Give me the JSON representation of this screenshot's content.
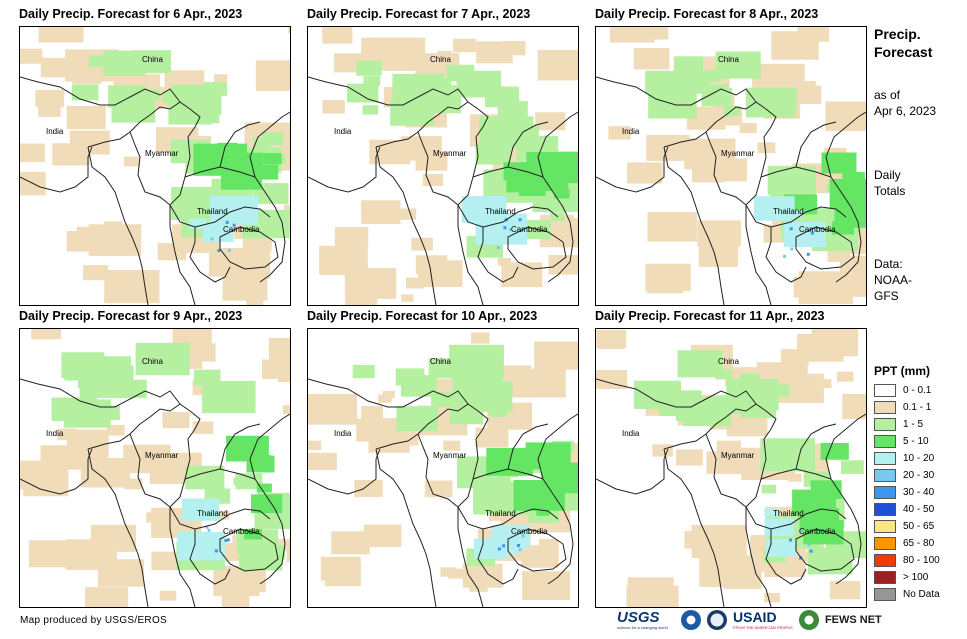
{
  "panels": [
    {
      "title": "Daily Precip. Forecast for 6 Apr., 2023",
      "seed": 6
    },
    {
      "title": "Daily Precip. Forecast for 7 Apr., 2023",
      "seed": 7
    },
    {
      "title": "Daily Precip. Forecast for 8 Apr., 2023",
      "seed": 8
    },
    {
      "title": "Daily Precip. Forecast for 9 Apr., 2023",
      "seed": 9
    },
    {
      "title": "Daily Precip. Forecast for 10 Apr., 2023",
      "seed": 10
    },
    {
      "title": "Daily Precip. Forecast for 11 Apr., 2023",
      "seed": 11
    }
  ],
  "places": {
    "china": "China",
    "india": "India",
    "myanmar": "Myanmar",
    "thailand": "Thailand",
    "cambodia": "Cambodia"
  },
  "side": {
    "title": "Precip. Forecast",
    "asof_line1": "as of",
    "asof_line2": "Apr 6, 2023",
    "totals_line1": "Daily",
    "totals_line2": "Totals",
    "data_line1": "Data:",
    "data_line2": "NOAA-",
    "data_line3": "GFS"
  },
  "legend": {
    "title": "PPT (mm)",
    "items": [
      {
        "label": "0 - 0.1",
        "color": "#ffffff"
      },
      {
        "label": "0.1 - 1",
        "color": "#f0dcb8"
      },
      {
        "label": "1 - 5",
        "color": "#b4f0a0"
      },
      {
        "label": "5 - 10",
        "color": "#64e664"
      },
      {
        "label": "10 - 20",
        "color": "#b4f0f0"
      },
      {
        "label": "20 - 30",
        "color": "#78c8f0"
      },
      {
        "label": "30 - 40",
        "color": "#3c96f0"
      },
      {
        "label": "40 - 50",
        "color": "#1e50dc"
      },
      {
        "label": "50 - 65",
        "color": "#fae682"
      },
      {
        "label": "65 - 80",
        "color": "#fa9600"
      },
      {
        "label": "80 - 100",
        "color": "#f03c00"
      },
      {
        "label": "> 100",
        "color": "#a01e1e"
      },
      {
        "label": "No Data",
        "color": "#969696"
      }
    ]
  },
  "credit": "Map produced by USGS/EROS",
  "logos": {
    "usgs": "USGS",
    "usgs_tagline": "science for a changing world",
    "usaid": "USAID",
    "usaid_tagline": "FROM THE AMERICAN PEOPLE",
    "fews": "FEWS NET"
  }
}
